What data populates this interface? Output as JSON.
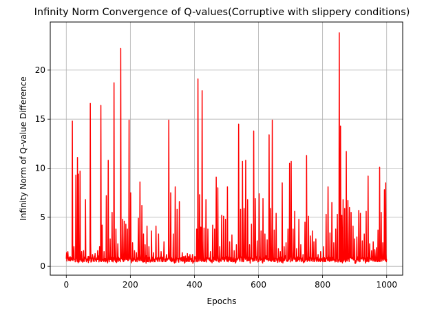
{
  "chart_data": {
    "type": "line",
    "title": "Infinity Norm Convergence of Q-values(Corruptive with slippery conditions)",
    "xlabel": "Epochs",
    "ylabel": "Infinity Norm of Q-value Difference",
    "xlim": [
      -50,
      1050
    ],
    "ylim": [
      -0.9,
      24.9
    ],
    "xticks": [
      0,
      200,
      400,
      600,
      800,
      1000
    ],
    "yticks": [
      0,
      5,
      10,
      15,
      20
    ],
    "grid": true,
    "legend": "none",
    "series": [
      {
        "color": "#ff0000",
        "baseline": {
          "min": 0.3,
          "max": 1.1
        },
        "spikes": [
          [
            1,
            1.4
          ],
          [
            5,
            1.5
          ],
          [
            12,
            1.0
          ],
          [
            19,
            14.8
          ],
          [
            24,
            2.0
          ],
          [
            30,
            9.3
          ],
          [
            35,
            11.1
          ],
          [
            38,
            9.4
          ],
          [
            43,
            9.7
          ],
          [
            48,
            1.5
          ],
          [
            54,
            1.6
          ],
          [
            60,
            6.8
          ],
          [
            68,
            1.0
          ],
          [
            75,
            16.6
          ],
          [
            82,
            1.2
          ],
          [
            90,
            1.3
          ],
          [
            98,
            1.6
          ],
          [
            104,
            2.0
          ],
          [
            108,
            16.4
          ],
          [
            112,
            4.2
          ],
          [
            118,
            1.5
          ],
          [
            125,
            7.2
          ],
          [
            131,
            10.8
          ],
          [
            137,
            2.8
          ],
          [
            143,
            5.5
          ],
          [
            149,
            18.7
          ],
          [
            155,
            3.8
          ],
          [
            161,
            2.3
          ],
          [
            170,
            22.2
          ],
          [
            176,
            4.8
          ],
          [
            181,
            4.6
          ],
          [
            186,
            4.3
          ],
          [
            191,
            3.8
          ],
          [
            196,
            14.9
          ],
          [
            201,
            7.5
          ],
          [
            207,
            2.4
          ],
          [
            213,
            1.6
          ],
          [
            219,
            1.4
          ],
          [
            225,
            4.9
          ],
          [
            230,
            8.6
          ],
          [
            236,
            6.2
          ],
          [
            241,
            3.3
          ],
          [
            246,
            2.2
          ],
          [
            252,
            4.1
          ],
          [
            258,
            2.0
          ],
          [
            266,
            3.6
          ],
          [
            272,
            1.4
          ],
          [
            280,
            4.1
          ],
          [
            288,
            3.3
          ],
          [
            296,
            1.5
          ],
          [
            305,
            2.5
          ],
          [
            313,
            1.2
          ],
          [
            320,
            14.9
          ],
          [
            326,
            7.5
          ],
          [
            334,
            3.3
          ],
          [
            340,
            8.1
          ],
          [
            346,
            5.8
          ],
          [
            353,
            6.6
          ],
          [
            362,
            1.4
          ],
          [
            370,
            1.0
          ],
          [
            378,
            1.3
          ],
          [
            386,
            1.2
          ],
          [
            394,
            1.2
          ],
          [
            402,
            1.0
          ],
          [
            407,
            3.8
          ],
          [
            411,
            19.1
          ],
          [
            416,
            7.3
          ],
          [
            420,
            4.0
          ],
          [
            424,
            17.9
          ],
          [
            430,
            3.9
          ],
          [
            436,
            6.8
          ],
          [
            442,
            3.8
          ],
          [
            450,
            1.5
          ],
          [
            457,
            4.2
          ],
          [
            463,
            3.8
          ],
          [
            468,
            9.1
          ],
          [
            473,
            8.0
          ],
          [
            479,
            2.0
          ],
          [
            485,
            5.2
          ],
          [
            491,
            5.1
          ],
          [
            497,
            4.8
          ],
          [
            503,
            8.1
          ],
          [
            510,
            2.5
          ],
          [
            517,
            3.2
          ],
          [
            524,
            1.6
          ],
          [
            531,
            2.2
          ],
          [
            538,
            14.5
          ],
          [
            544,
            5.8
          ],
          [
            550,
            10.7
          ],
          [
            555,
            5.9
          ],
          [
            560,
            10.8
          ],
          [
            566,
            6.8
          ],
          [
            572,
            2.2
          ],
          [
            578,
            4.3
          ],
          [
            585,
            13.8
          ],
          [
            590,
            6.9
          ],
          [
            596,
            2.6
          ],
          [
            602,
            7.4
          ],
          [
            608,
            3.6
          ],
          [
            614,
            6.9
          ],
          [
            620,
            3.3
          ],
          [
            627,
            2.7
          ],
          [
            633,
            13.4
          ],
          [
            638,
            5.9
          ],
          [
            643,
            14.9
          ],
          [
            649,
            3.7
          ],
          [
            655,
            5.4
          ],
          [
            662,
            1.8
          ],
          [
            668,
            1.5
          ],
          [
            674,
            8.5
          ],
          [
            680,
            2.0
          ],
          [
            686,
            2.4
          ],
          [
            692,
            3.8
          ],
          [
            697,
            10.5
          ],
          [
            702,
            10.7
          ],
          [
            708,
            3.8
          ],
          [
            713,
            5.6
          ],
          [
            719,
            1.8
          ],
          [
            726,
            4.8
          ],
          [
            732,
            2.2
          ],
          [
            739,
            1.2
          ],
          [
            745,
            4.5
          ],
          [
            750,
            11.3
          ],
          [
            756,
            5.1
          ],
          [
            762,
            3.1
          ],
          [
            768,
            3.6
          ],
          [
            773,
            2.5
          ],
          [
            779,
            2.8
          ],
          [
            786,
            1.2
          ],
          [
            794,
            1.5
          ],
          [
            803,
            2.0
          ],
          [
            811,
            5.3
          ],
          [
            817,
            8.1
          ],
          [
            823,
            3.4
          ],
          [
            829,
            6.5
          ],
          [
            835,
            2.4
          ],
          [
            841,
            3.8
          ],
          [
            846,
            5.3
          ],
          [
            852,
            23.8
          ],
          [
            856,
            14.3
          ],
          [
            860,
            5.2
          ],
          [
            864,
            6.8
          ],
          [
            869,
            5.9
          ],
          [
            874,
            11.7
          ],
          [
            879,
            6.7
          ],
          [
            884,
            6.0
          ],
          [
            889,
            5.5
          ],
          [
            895,
            4.1
          ],
          [
            900,
            2.8
          ],
          [
            907,
            3.0
          ],
          [
            913,
            5.7
          ],
          [
            918,
            5.4
          ],
          [
            924,
            2.6
          ],
          [
            930,
            3.3
          ],
          [
            936,
            5.6
          ],
          [
            942,
            9.2
          ],
          [
            947,
            2.3
          ],
          [
            953,
            1.6
          ],
          [
            958,
            2.5
          ],
          [
            963,
            1.7
          ],
          [
            968,
            1.9
          ],
          [
            973,
            3.7
          ],
          [
            978,
            10.1
          ],
          [
            983,
            5.5
          ],
          [
            988,
            2.4
          ],
          [
            993,
            7.8
          ],
          [
            997,
            8.5
          ]
        ]
      }
    ]
  }
}
